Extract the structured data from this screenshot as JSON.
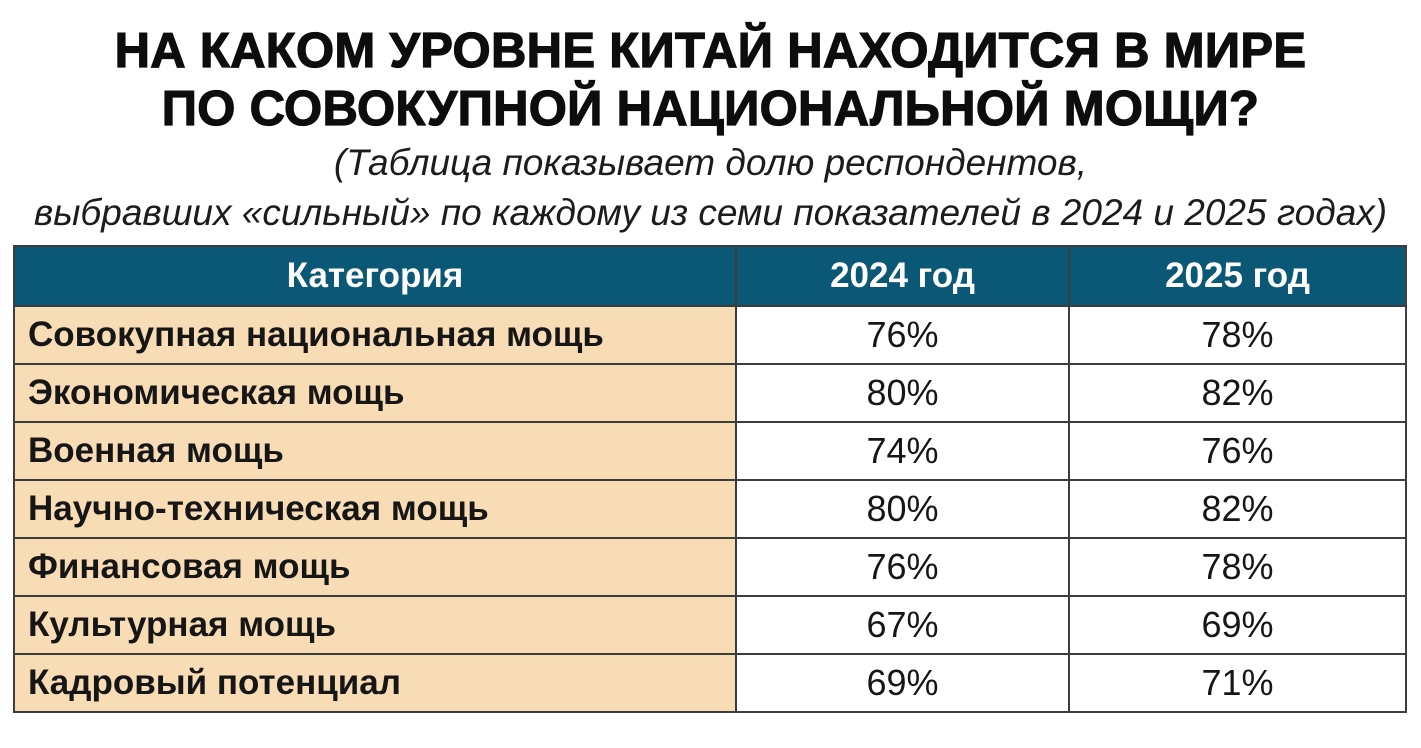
{
  "title_lines": [
    "НА КАКОМ УРОВНЕ КИТАЙ НАХОДИТСЯ В МИРЕ",
    "ПО СОВОКУПНОЙ НАЦИОНАЛЬНОЙ МОЩИ?"
  ],
  "subtitle_lines": [
    "(Таблица показывает долю респондентов,",
    "выбравших «сильный» по каждому из семи показателей в 2024 и 2025 годах)"
  ],
  "colors": {
    "header_bg": "#0a5876",
    "category_bg": "#f8dcb6",
    "border": "#3d3d3d"
  },
  "chart_data": {
    "type": "table",
    "title": "НА КАКОМ УРОВНЕ КИТАЙ НАХОДИТСЯ В МИРЕ ПО СОВОКУПНОЙ НАЦИОНАЛЬНОЙ МОЩИ?",
    "subtitle": "(Таблица показывает долю респондентов, выбравших «сильный» по каждому из семи показателей в 2024 и 2025 годах)",
    "columns": [
      "Категория",
      "2024 год",
      "2025 год"
    ],
    "rows": [
      {
        "category": "Совокупная национальная мощь",
        "y2024": "76%",
        "y2025": "78%"
      },
      {
        "category": "Экономическая мощь",
        "y2024": "80%",
        "y2025": "82%"
      },
      {
        "category": "Военная мощь",
        "y2024": "74%",
        "y2025": "76%"
      },
      {
        "category": "Научно-техническая мощь",
        "y2024": "80%",
        "y2025": "82%"
      },
      {
        "category": "Финансовая мощь",
        "y2024": "76%",
        "y2025": "78%"
      },
      {
        "category": "Культурная мощь",
        "y2024": "67%",
        "y2025": "69%"
      },
      {
        "category": "Кадровый потенциал",
        "y2024": "69%",
        "y2025": "71%"
      }
    ]
  }
}
